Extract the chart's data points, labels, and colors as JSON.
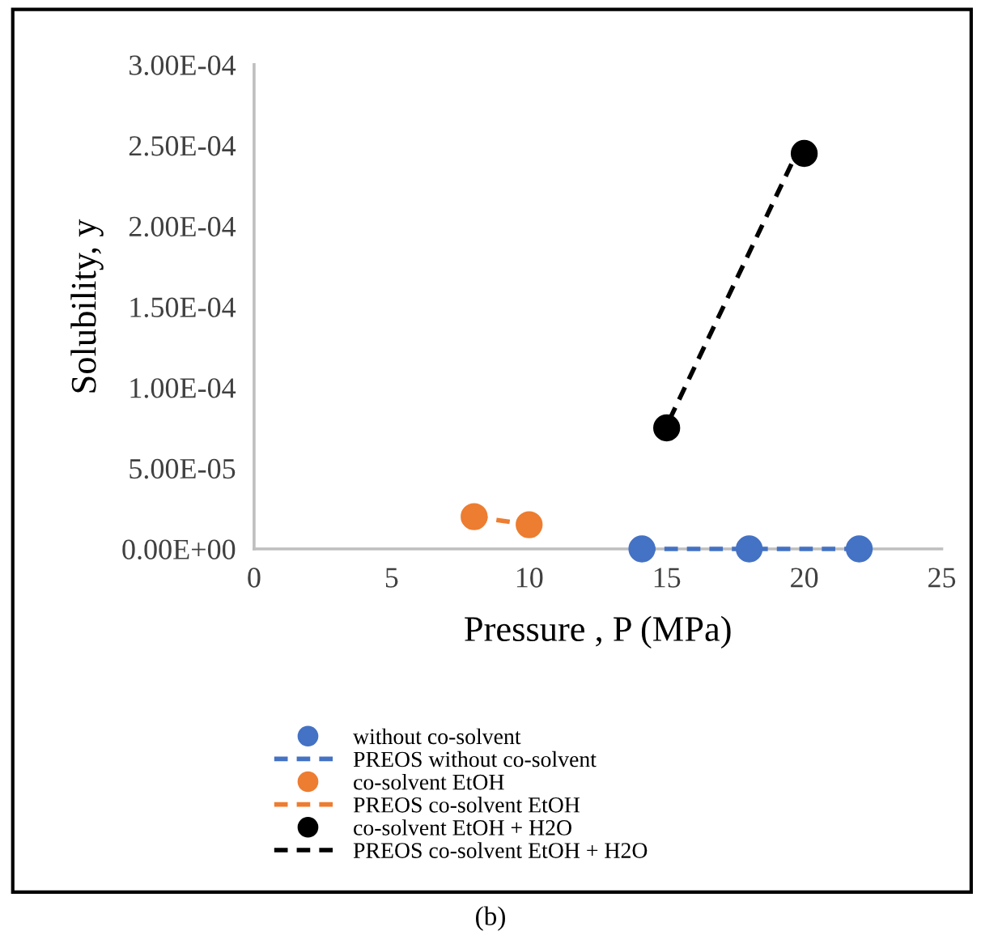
{
  "chart_data": {
    "type": "scatter",
    "xlabel": "Pressure , P (MPa)",
    "ylabel": "Solubility, y",
    "xlim": [
      0,
      25
    ],
    "xticks": [
      0,
      5,
      10,
      15,
      20,
      25
    ],
    "ylim": [
      0,
      0.0003
    ],
    "yticks": [
      {
        "value": 0,
        "label": "0.00E+00"
      },
      {
        "value": 5e-05,
        "label": "5.00E-05"
      },
      {
        "value": 0.0001,
        "label": "1.00E-04"
      },
      {
        "value": 0.00015,
        "label": "1.50E-04"
      },
      {
        "value": 0.0002,
        "label": "2.00E-04"
      },
      {
        "value": 0.00025,
        "label": "2.50E-04"
      },
      {
        "value": 0.0003,
        "label": "3.00E-04"
      }
    ],
    "grid": false,
    "legend": "bottom",
    "annotations": [
      "(b)"
    ],
    "series": [
      {
        "name": "without co-solvent",
        "marker": "circle",
        "color": "#4472c4",
        "x": [
          14.1,
          18,
          22
        ],
        "values": [
          0,
          0,
          0
        ]
      },
      {
        "name": "PREOS without co-solvent",
        "type": "line",
        "marker": "none",
        "line_style": "dashed",
        "color": "#4472c4",
        "x": [
          14.1,
          18,
          22
        ],
        "values": [
          0,
          0,
          0
        ]
      },
      {
        "name": "co-solvent EtOH",
        "marker": "circle",
        "color": "#ed7d31",
        "x": [
          8,
          10
        ],
        "values": [
          2e-05,
          1.5e-05
        ]
      },
      {
        "name": "PREOS co-solvent EtOH",
        "type": "line",
        "marker": "none",
        "line_style": "dashed",
        "color": "#ed7d31",
        "x": [
          8,
          10
        ],
        "values": [
          2e-05,
          1.5e-05
        ]
      },
      {
        "name": "co-solvent EtOH + H2O",
        "marker": "circle",
        "color": "#000000",
        "x": [
          15,
          20
        ],
        "values": [
          7.5e-05,
          0.000245
        ]
      },
      {
        "name": "PREOS co-solvent EtOH + H2O",
        "type": "line",
        "marker": "none",
        "line_style": "dashed",
        "color": "#000000",
        "x": [
          15.1,
          20
        ],
        "values": [
          8e-05,
          0.000255
        ]
      }
    ]
  }
}
